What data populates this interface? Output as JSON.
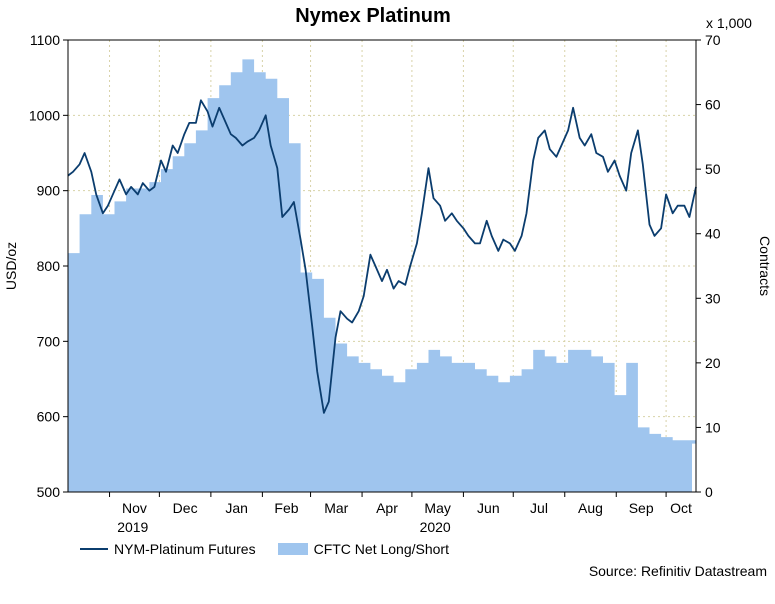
{
  "chart_data": {
    "type": "line",
    "title": "Nymex Platinum",
    "ylabel_left": "USD/oz",
    "ylabel_right": "Contracts",
    "right_axis_multiplier": "x 1,000",
    "source": "Source: Refinitiv Datastream",
    "ylim_left": [
      500,
      1100
    ],
    "yticks_left": [
      "500",
      "600",
      "700",
      "800",
      "900",
      "1000",
      "1100"
    ],
    "ylim_right": [
      0,
      70
    ],
    "yticks_right": [
      "0",
      "10",
      "20",
      "30",
      "40",
      "50",
      "60",
      "70"
    ],
    "xlim": [
      "2019-10-07",
      "2020-10-19"
    ],
    "month_labels": [
      {
        "label": "Nov",
        "date": "2019-11-01"
      },
      {
        "label": "Dec",
        "date": "2019-12-01"
      },
      {
        "label": "Jan",
        "date": "2020-01-01"
      },
      {
        "label": "Feb",
        "date": "2020-02-01"
      },
      {
        "label": "Mar",
        "date": "2020-03-01"
      },
      {
        "label": "Apr",
        "date": "2020-04-01"
      },
      {
        "label": "May",
        "date": "2020-05-01"
      },
      {
        "label": "Jun",
        "date": "2020-06-01"
      },
      {
        "label": "Jul",
        "date": "2020-07-01"
      },
      {
        "label": "Aug",
        "date": "2020-08-01"
      },
      {
        "label": "Sep",
        "date": "2020-09-01"
      },
      {
        "label": "Oct",
        "date": "2020-10-01"
      }
    ],
    "year_labels": [
      {
        "label": "2019",
        "date": "2019-11-15"
      },
      {
        "label": "2020",
        "date": "2020-05-15"
      }
    ],
    "grid": true,
    "legend_position": "bottom-left",
    "colors": {
      "line": "#0b3d6e",
      "area": "#9fc5ee"
    },
    "series": [
      {
        "name": "NYM-Platinum Futures",
        "axis": "left",
        "style": "line",
        "x": [
          "2019-10-07",
          "2019-10-10",
          "2019-10-14",
          "2019-10-17",
          "2019-10-21",
          "2019-10-24",
          "2019-10-28",
          "2019-10-31",
          "2019-11-04",
          "2019-11-07",
          "2019-11-11",
          "2019-11-14",
          "2019-11-18",
          "2019-11-21",
          "2019-11-25",
          "2019-11-28",
          "2019-12-02",
          "2019-12-05",
          "2019-12-09",
          "2019-12-12",
          "2019-12-16",
          "2019-12-19",
          "2019-12-23",
          "2019-12-26",
          "2019-12-30",
          "2020-01-02",
          "2020-01-06",
          "2020-01-09",
          "2020-01-13",
          "2020-01-16",
          "2020-01-20",
          "2020-01-23",
          "2020-01-27",
          "2020-01-30",
          "2020-02-03",
          "2020-02-06",
          "2020-02-10",
          "2020-02-13",
          "2020-02-17",
          "2020-02-20",
          "2020-02-24",
          "2020-02-27",
          "2020-03-02",
          "2020-03-05",
          "2020-03-09",
          "2020-03-12",
          "2020-03-16",
          "2020-03-19",
          "2020-03-23",
          "2020-03-26",
          "2020-03-30",
          "2020-04-02",
          "2020-04-06",
          "2020-04-09",
          "2020-04-13",
          "2020-04-16",
          "2020-04-20",
          "2020-04-23",
          "2020-04-27",
          "2020-04-30",
          "2020-05-04",
          "2020-05-07",
          "2020-05-11",
          "2020-05-14",
          "2020-05-18",
          "2020-05-21",
          "2020-05-25",
          "2020-05-28",
          "2020-06-01",
          "2020-06-04",
          "2020-06-08",
          "2020-06-11",
          "2020-06-15",
          "2020-06-18",
          "2020-06-22",
          "2020-06-25",
          "2020-06-29",
          "2020-07-02",
          "2020-07-06",
          "2020-07-09",
          "2020-07-13",
          "2020-07-16",
          "2020-07-20",
          "2020-07-23",
          "2020-07-27",
          "2020-07-30",
          "2020-08-03",
          "2020-08-06",
          "2020-08-10",
          "2020-08-13",
          "2020-08-17",
          "2020-08-20",
          "2020-08-24",
          "2020-08-27",
          "2020-08-31",
          "2020-09-03",
          "2020-09-07",
          "2020-09-10",
          "2020-09-14",
          "2020-09-17",
          "2020-09-21",
          "2020-09-24",
          "2020-09-28",
          "2020-10-01",
          "2020-10-05",
          "2020-10-08",
          "2020-10-12",
          "2020-10-15",
          "2020-10-19"
        ],
        "values": [
          920,
          925,
          935,
          950,
          925,
          895,
          870,
          880,
          900,
          915,
          895,
          905,
          895,
          910,
          900,
          905,
          940,
          925,
          960,
          950,
          975,
          990,
          990,
          1020,
          1005,
          985,
          1010,
          995,
          975,
          970,
          960,
          965,
          970,
          980,
          1000,
          960,
          930,
          865,
          875,
          885,
          835,
          795,
          720,
          660,
          605,
          620,
          705,
          740,
          730,
          725,
          740,
          760,
          815,
          800,
          780,
          795,
          770,
          780,
          775,
          800,
          830,
          870,
          930,
          890,
          880,
          860,
          870,
          860,
          850,
          840,
          830,
          830,
          860,
          840,
          820,
          835,
          830,
          820,
          840,
          870,
          940,
          970,
          980,
          955,
          945,
          960,
          980,
          1010,
          970,
          960,
          975,
          950,
          945,
          925,
          940,
          920,
          900,
          950,
          980,
          935,
          855,
          840,
          850,
          895,
          870,
          880,
          880,
          865,
          905
        ]
      },
      {
        "name": "CFTC Net Long/Short",
        "axis": "right",
        "style": "area",
        "x": [
          "2019-10-07",
          "2019-10-14",
          "2019-10-21",
          "2019-10-28",
          "2019-11-04",
          "2019-11-11",
          "2019-11-18",
          "2019-11-25",
          "2019-12-02",
          "2019-12-09",
          "2019-12-16",
          "2019-12-23",
          "2019-12-30",
          "2020-01-06",
          "2020-01-13",
          "2020-01-20",
          "2020-01-27",
          "2020-02-03",
          "2020-02-10",
          "2020-02-17",
          "2020-02-24",
          "2020-03-02",
          "2020-03-09",
          "2020-03-16",
          "2020-03-23",
          "2020-03-30",
          "2020-04-06",
          "2020-04-13",
          "2020-04-20",
          "2020-04-27",
          "2020-05-04",
          "2020-05-11",
          "2020-05-18",
          "2020-05-25",
          "2020-06-01",
          "2020-06-08",
          "2020-06-15",
          "2020-06-22",
          "2020-06-29",
          "2020-07-06",
          "2020-07-13",
          "2020-07-20",
          "2020-07-27",
          "2020-08-03",
          "2020-08-10",
          "2020-08-17",
          "2020-08-24",
          "2020-08-31",
          "2020-09-07",
          "2020-09-14",
          "2020-09-21",
          "2020-09-28",
          "2020-10-05",
          "2020-10-12",
          "2020-10-19"
        ],
        "values": [
          37,
          43,
          46,
          43,
          45,
          47,
          47,
          48,
          50,
          52,
          54,
          56,
          61,
          63,
          65,
          67,
          65,
          64,
          61,
          54,
          34,
          33,
          27,
          23,
          21,
          20,
          19,
          18,
          17,
          19,
          20,
          22,
          21,
          20,
          20,
          19,
          18,
          17,
          18,
          19,
          22,
          21,
          20,
          22,
          22,
          21,
          20,
          15,
          20,
          10,
          9,
          8.5,
          8,
          8,
          7.5
        ]
      }
    ]
  }
}
